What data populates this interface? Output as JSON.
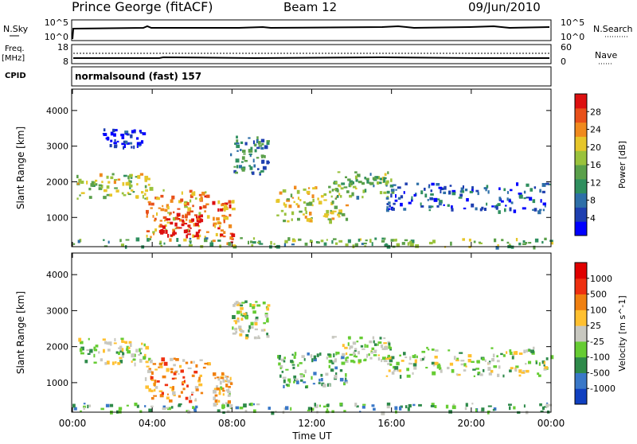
{
  "header": {
    "station": "Prince George (fitACF)",
    "beam": "Beam 12",
    "date": "09/Jun/2010"
  },
  "top_panel": {
    "left_label": "N.Sky",
    "left_ticks": [
      "10^5",
      "10^0"
    ],
    "right_ticks": [
      "10^5",
      "10^0"
    ],
    "right_label": "N.Search"
  },
  "freq_panel": {
    "left_label_1": "Freq.",
    "left_label_2": "[MHz]",
    "left_ticks": [
      "18",
      "8"
    ],
    "right_ticks": [
      "60",
      "0"
    ],
    "right_label": "Nave",
    "cpid_label": "CPID",
    "cpid_text": "normalsound (fast) 157"
  },
  "chart_data": [
    {
      "type": "heatmap",
      "title": "",
      "xlabel": "Time UT",
      "ylabel": "Slant Range [km]",
      "x_ticks": [
        "00:00",
        "04:00",
        "08:00",
        "12:00",
        "16:00",
        "20:00",
        "00:00"
      ],
      "y_ticks": [
        "1000",
        "2000",
        "3000",
        "4000"
      ],
      "xlim_hours": [
        0,
        24
      ],
      "ylim_km": [
        180,
        4600
      ],
      "colorbar": {
        "label": "Power [dB]",
        "ticks": [
          "4",
          "8",
          "12",
          "16",
          "20",
          "24",
          "28"
        ],
        "colors": [
          "#0000ff",
          "#1e3fb0",
          "#2e6fa8",
          "#2f8f5f",
          "#5aa04a",
          "#9ac23c",
          "#e6c62a",
          "#f08a1e",
          "#e8501a",
          "#dd1010"
        ]
      },
      "regions": [
        {
          "t0": 0.2,
          "t1": 3.9,
          "r0": 1550,
          "r1": 2250,
          "level": 0.55
        },
        {
          "t0": 3.6,
          "t1": 6.8,
          "r0": 400,
          "r1": 1800,
          "level": 0.75
        },
        {
          "t0": 4.3,
          "t1": 6.5,
          "r0": 500,
          "r1": 1150,
          "level": 0.95
        },
        {
          "t0": 7.0,
          "t1": 8.0,
          "r0": 300,
          "r1": 1500,
          "level": 0.8
        },
        {
          "t0": 7.9,
          "t1": 9.8,
          "r0": 2200,
          "r1": 3300,
          "level": 0.3
        },
        {
          "t0": 10.2,
          "t1": 13.8,
          "r0": 900,
          "r1": 1900,
          "level": 0.6
        },
        {
          "t0": 13.0,
          "t1": 16.0,
          "r0": 1600,
          "r1": 2300,
          "level": 0.45
        },
        {
          "t0": 15.5,
          "t1": 24.0,
          "r0": 1200,
          "r1": 2000,
          "level": 0.2
        },
        {
          "t0": 0.0,
          "t1": 24.0,
          "r0": 200,
          "r1": 450,
          "level": 0.45
        },
        {
          "t0": 1.5,
          "t1": 3.5,
          "r0": 3000,
          "r1": 3500,
          "level": 0.1
        }
      ]
    },
    {
      "type": "heatmap",
      "title": "",
      "xlabel": "Time UT",
      "ylabel": "Slant Range [km]",
      "x_ticks": [
        "00:00",
        "04:00",
        "08:00",
        "12:00",
        "16:00",
        "20:00",
        "00:00"
      ],
      "y_ticks": [
        "1000",
        "2000",
        "3000",
        "4000"
      ],
      "xlim_hours": [
        0,
        24
      ],
      "ylim_km": [
        180,
        4600
      ],
      "colorbar": {
        "label": "Velocity [m s^-1]",
        "ticks": [
          "1000",
          "500",
          "100",
          "25",
          "-25",
          "-100",
          "-500",
          "-1000"
        ],
        "colors": [
          "#1040c0",
          "#3a78c8",
          "#2e8a4a",
          "#66cc33",
          "#c8c8c0",
          "#ffc030",
          "#f08010",
          "#ee3010",
          "#e00000"
        ]
      },
      "regions": [
        {
          "t0": 0.2,
          "t1": 3.9,
          "r0": 1550,
          "r1": 2250,
          "level": 0.45
        },
        {
          "t0": 3.6,
          "t1": 6.8,
          "r0": 500,
          "r1": 1700,
          "level": 0.67
        },
        {
          "t0": 7.0,
          "t1": 8.0,
          "r0": 400,
          "r1": 1300,
          "level": 0.6
        },
        {
          "t0": 7.9,
          "t1": 9.8,
          "r0": 2200,
          "r1": 3300,
          "level": 0.45
        },
        {
          "t0": 10.2,
          "t1": 13.8,
          "r0": 900,
          "r1": 1900,
          "level": 0.35
        },
        {
          "t0": 13.0,
          "t1": 16.0,
          "r0": 1600,
          "r1": 2300,
          "level": 0.45
        },
        {
          "t0": 15.5,
          "t1": 24.0,
          "r0": 1200,
          "r1": 2000,
          "level": 0.45
        },
        {
          "t0": 0.0,
          "t1": 24.0,
          "r0": 200,
          "r1": 450,
          "level": 0.35
        }
      ]
    }
  ]
}
